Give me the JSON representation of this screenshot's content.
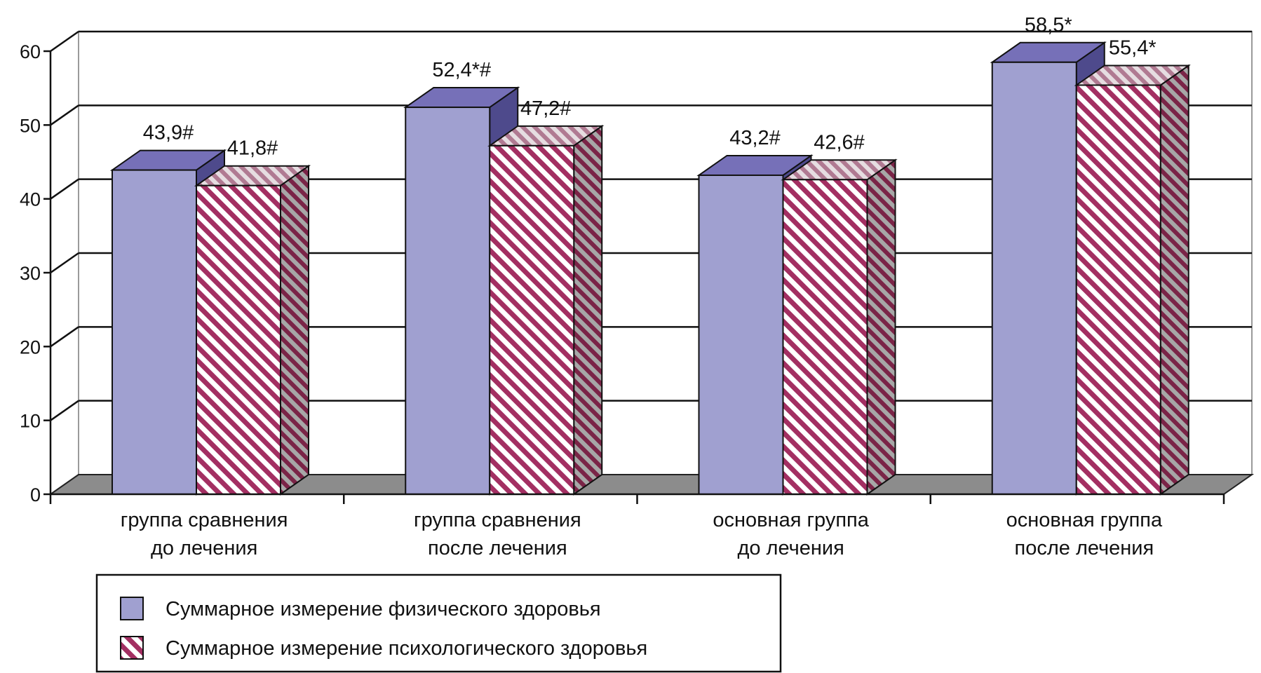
{
  "chart_data": {
    "type": "bar",
    "style": "3d-clustered-column",
    "categories": [
      [
        "группа сравнения",
        "до лечения"
      ],
      [
        "группа сравнения",
        "после лечения"
      ],
      [
        "основная группа",
        "до лечения"
      ],
      [
        "основная группа",
        "после лечения"
      ]
    ],
    "series": [
      {
        "name": "Суммарное измерение физического здоровья",
        "values": [
          43.9,
          52.4,
          43.2,
          58.5
        ],
        "labels": [
          "43,9#",
          "52,4*#",
          "43,2#",
          "58,5*"
        ],
        "color": "#a0a0d0",
        "top_color": "#7670b8",
        "side_color": "#4e4a8c",
        "pattern": "solid"
      },
      {
        "name": "Суммарное измерение психологического здоровья",
        "values": [
          41.8,
          47.2,
          42.6,
          55.4
        ],
        "labels": [
          "41,8#",
          "47,2#",
          "42,6#",
          "55,4*"
        ],
        "color": "#a32f62",
        "top_color": "#c8a6b4",
        "side_color": "#7a2447",
        "pattern": "diagonal-stripes"
      }
    ],
    "ylim": [
      0,
      60
    ],
    "yticks": [
      0,
      10,
      20,
      30,
      40,
      50,
      60
    ],
    "grid": true,
    "legend": "bottom-left"
  }
}
